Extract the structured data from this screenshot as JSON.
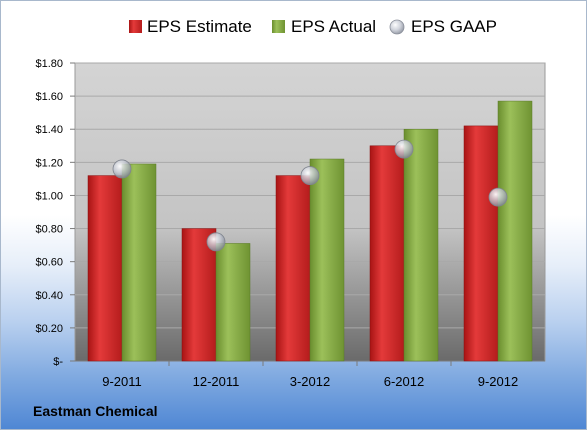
{
  "footer": {
    "company": "Eastman Chemical"
  },
  "colors": {
    "estimate": "#d42a2a",
    "actual": "#8cb04a",
    "gaap": "#c8ccd6"
  },
  "chart_data": {
    "type": "bar",
    "title": "",
    "xlabel": "",
    "ylabel": "",
    "categories": [
      "9-2011",
      "12-2011",
      "3-2012",
      "6-2012",
      "9-2012"
    ],
    "series": [
      {
        "name": "EPS Estimate",
        "type": "bar",
        "values": [
          1.12,
          0.8,
          1.12,
          1.3,
          1.42
        ]
      },
      {
        "name": "EPS Actual",
        "type": "bar",
        "values": [
          1.19,
          0.71,
          1.22,
          1.4,
          1.57
        ]
      },
      {
        "name": "EPS GAAP",
        "type": "marker",
        "values": [
          1.16,
          0.72,
          1.12,
          1.28,
          0.99
        ]
      }
    ],
    "ylim": [
      0,
      1.8
    ],
    "yticks": [
      0,
      0.2,
      0.4,
      0.6,
      0.8,
      1.0,
      1.2,
      1.4,
      1.6,
      1.8
    ],
    "ytick_labels": [
      "$-",
      "$0.20",
      "$0.40",
      "$0.60",
      "$0.80",
      "$1.00",
      "$1.20",
      "$1.40",
      "$1.60",
      "$1.80"
    ],
    "grid": true,
    "legend_position": "top-center"
  }
}
